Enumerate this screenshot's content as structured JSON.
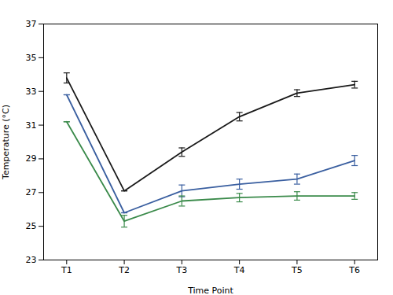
{
  "chart_data": {
    "type": "line",
    "x": [
      1,
      2,
      3,
      4,
      5,
      6
    ],
    "xlim": [
      0.6,
      6.4
    ],
    "xticks": [
      {
        "value": 1,
        "label": "T1"
      },
      {
        "value": 2,
        "label": "T2"
      },
      {
        "value": 3,
        "label": "T3"
      },
      {
        "value": 4,
        "label": "T4"
      },
      {
        "value": 5,
        "label": "T5"
      },
      {
        "value": 6,
        "label": "T6"
      }
    ],
    "ylim": [
      23,
      37
    ],
    "yticks": [
      23,
      25,
      27,
      29,
      31,
      33,
      35,
      37
    ],
    "xlabel": "Time Point",
    "ylabel": "Temperature (°C)",
    "grid": false,
    "series": [
      {
        "color": "#1a1a1a",
        "values": [
          33.8,
          27.1,
          29.4,
          31.5,
          32.9,
          33.4
        ],
        "yerr": [
          0.3,
          0.0,
          0.25,
          0.25,
          0.2,
          0.2
        ]
      },
      {
        "color": "#3a5fa0",
        "values": [
          32.8,
          25.8,
          27.1,
          27.5,
          27.8,
          28.9
        ],
        "yerr": [
          0.0,
          0.0,
          0.35,
          0.3,
          0.3,
          0.3
        ]
      },
      {
        "color": "#3a8a4a",
        "values": [
          31.2,
          25.3,
          26.5,
          26.7,
          26.8,
          26.8
        ],
        "yerr": [
          0.0,
          0.35,
          0.3,
          0.25,
          0.25,
          0.2
        ]
      }
    ]
  }
}
